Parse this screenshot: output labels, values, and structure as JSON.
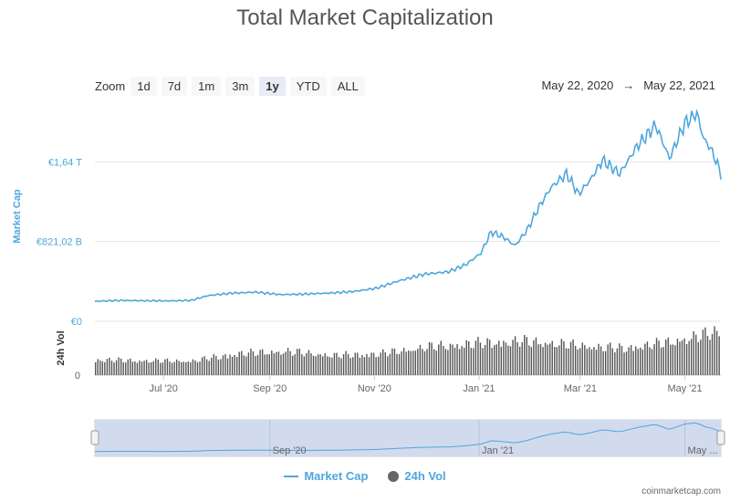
{
  "page": {
    "title": "Total Market Capitalization",
    "credit": "coinmarketcap.com"
  },
  "zoom": {
    "label": "Zoom",
    "buttons": [
      "1d",
      "7d",
      "1m",
      "3m",
      "1y",
      "YTD",
      "ALL"
    ],
    "active": "1y"
  },
  "range": {
    "from": "May 22, 2020",
    "arrow": "→",
    "to": "May 22, 2021"
  },
  "legend": {
    "market_cap": "Market Cap",
    "vol": "24h Vol"
  },
  "colors": {
    "market_cap": "#4fa6dc",
    "volume": "#555555",
    "navigator_fill": "#d2daed",
    "grid": "#e6e6e6"
  },
  "chart_data": {
    "type": "line",
    "x_range": [
      "2020-05-22",
      "2021-05-22"
    ],
    "x_ticks": [
      "Jul '20",
      "Sep '20",
      "Nov '20",
      "Jan '21",
      "Mar '21",
      "May '21"
    ],
    "y_axis": {
      "label": "Market Cap",
      "ticks": [
        "€0",
        "€821,02 B",
        "€1,64 T"
      ],
      "ylim": [
        0,
        2200
      ]
    },
    "vol_axis": {
      "label": "24h Vol",
      "ticks": [
        "0"
      ]
    },
    "navigator_ticks": [
      "Sep '20",
      "Jan '21",
      "May ..."
    ],
    "series": [
      {
        "name": "Market Cap",
        "unit": "billion EUR",
        "x": [
          "2020-05-22",
          "2020-06-05",
          "2020-06-19",
          "2020-07-03",
          "2020-07-17",
          "2020-07-27",
          "2020-08-10",
          "2020-08-24",
          "2020-09-07",
          "2020-09-21",
          "2020-10-05",
          "2020-10-19",
          "2020-11-02",
          "2020-11-16",
          "2020-11-30",
          "2020-12-14",
          "2020-12-24",
          "2021-01-02",
          "2021-01-08",
          "2021-01-15",
          "2021-01-22",
          "2021-01-29",
          "2021-02-05",
          "2021-02-12",
          "2021-02-21",
          "2021-02-28",
          "2021-03-07",
          "2021-03-14",
          "2021-03-24",
          "2021-04-03",
          "2021-04-14",
          "2021-04-22",
          "2021-05-01",
          "2021-05-08",
          "2021-05-12",
          "2021-05-16",
          "2021-05-19",
          "2021-05-22"
        ],
        "values": [
          205,
          215,
          212,
          210,
          215,
          265,
          290,
          300,
          275,
          280,
          290,
          305,
          340,
          420,
          485,
          510,
          580,
          700,
          920,
          870,
          780,
          940,
          1180,
          1380,
          1520,
          1310,
          1460,
          1660,
          1520,
          1800,
          2020,
          1680,
          2040,
          2140,
          1880,
          1780,
          1660,
          1520
        ]
      },
      {
        "name": "24h Vol",
        "unit": "relative",
        "x": [
          "2020-05-22",
          "2020-06-19",
          "2020-07-17",
          "2020-08-14",
          "2020-09-11",
          "2020-10-09",
          "2020-11-06",
          "2020-12-04",
          "2021-01-01",
          "2021-01-29",
          "2021-02-26",
          "2021-03-26",
          "2021-04-23",
          "2021-05-22"
        ],
        "values": [
          0.3,
          0.28,
          0.27,
          0.42,
          0.46,
          0.38,
          0.42,
          0.55,
          0.62,
          0.66,
          0.58,
          0.52,
          0.64,
          0.85
        ]
      }
    ]
  }
}
